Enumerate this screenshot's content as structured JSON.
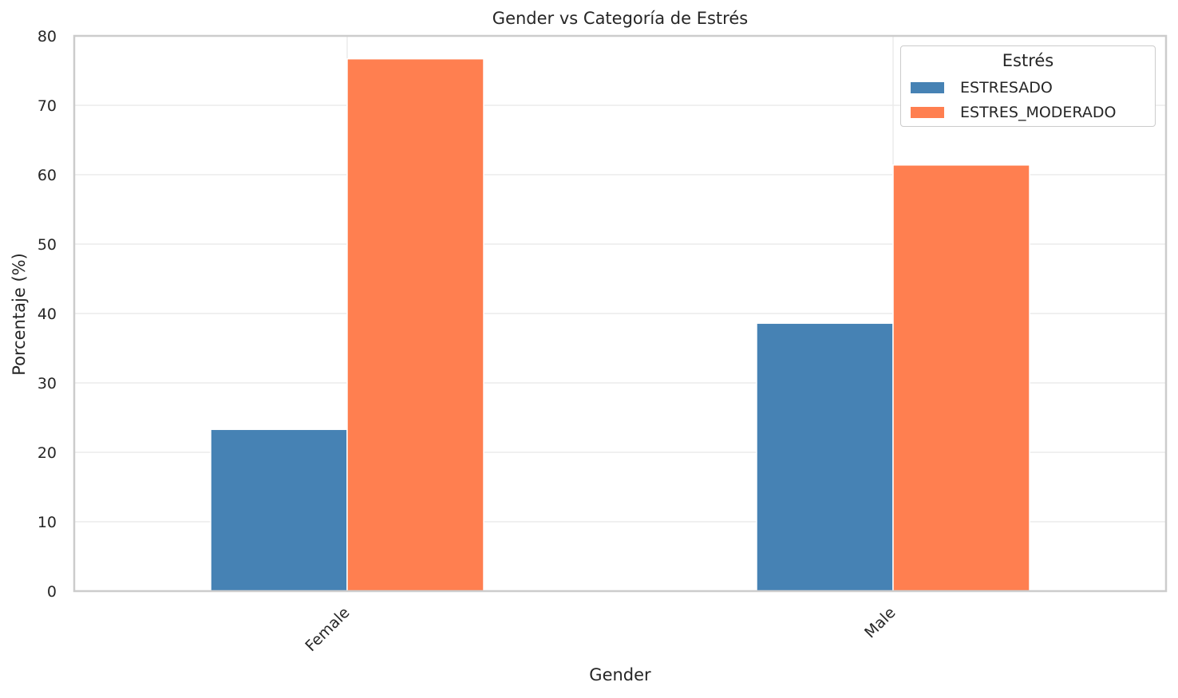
{
  "chart_data": {
    "type": "bar",
    "title": "Gender vs Categoría de Estrés",
    "xlabel": "Gender",
    "ylabel": "Porcentaje (%)",
    "categories": [
      "Female",
      "Male"
    ],
    "series": [
      {
        "name": "ESTRESADO",
        "values": [
          23.3,
          38.6
        ],
        "color": "#4682b4"
      },
      {
        "name": "ESTRES_MODERADO",
        "values": [
          76.7,
          61.4
        ],
        "color": "#ff7f50"
      }
    ],
    "ylim": [
      0,
      80
    ],
    "yticks": [
      0,
      10,
      20,
      30,
      40,
      50,
      60,
      70,
      80
    ],
    "grid": true,
    "legend": {
      "title": "Estrés",
      "placement": "top-right"
    }
  }
}
